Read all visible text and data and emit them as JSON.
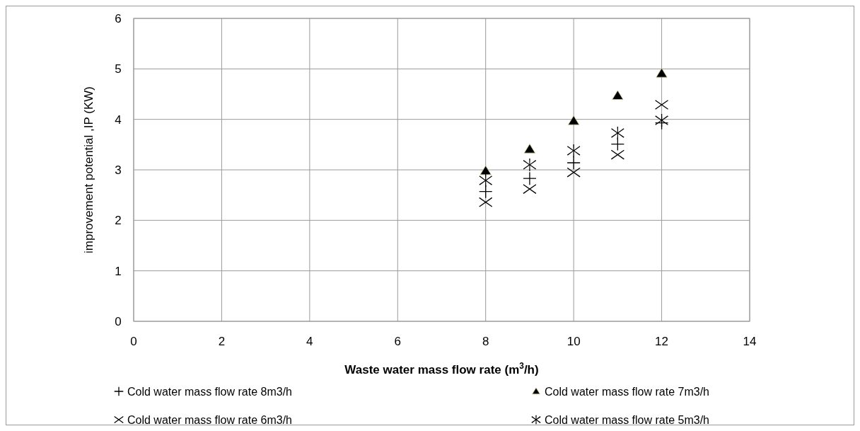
{
  "chart_data": {
    "type": "scatter",
    "xlabel": "Waste water mass flow rate (m$^{3}$/h)",
    "ylabel": "improvement potential ,IP (KW)",
    "x": [
      8,
      9,
      10,
      11,
      12
    ],
    "series": [
      {
        "name": "Cold water mass flow rate 8m3/h",
        "color": "#000000",
        "marker": "plus",
        "values": [
          2.57,
          2.83,
          3.14,
          3.51,
          3.93
        ]
      },
      {
        "name": "Cold water mass flow rate 7m3/h",
        "color": "#000000",
        "marker": "triangle",
        "values": [
          2.98,
          3.41,
          3.97,
          4.47,
          4.91
        ]
      },
      {
        "name": "Cold water mass flow rate 6m3/h",
        "color": "#000000",
        "marker": "cross",
        "values": [
          2.36,
          2.62,
          2.95,
          3.3,
          4.29
        ]
      },
      {
        "name": "Cold water mass flow rate 5m3/h",
        "color": "#000000",
        "marker": "star",
        "values": [
          2.79,
          3.1,
          3.38,
          3.73,
          3.98
        ]
      }
    ],
    "xlim": [
      0,
      14
    ],
    "xticks": [
      0,
      2,
      4,
      6,
      8,
      10,
      12,
      14
    ],
    "ylim": [
      0,
      6
    ],
    "yticks": [
      0,
      1,
      2,
      3,
      4,
      5,
      6
    ],
    "grid": true,
    "legend": "bottom"
  }
}
